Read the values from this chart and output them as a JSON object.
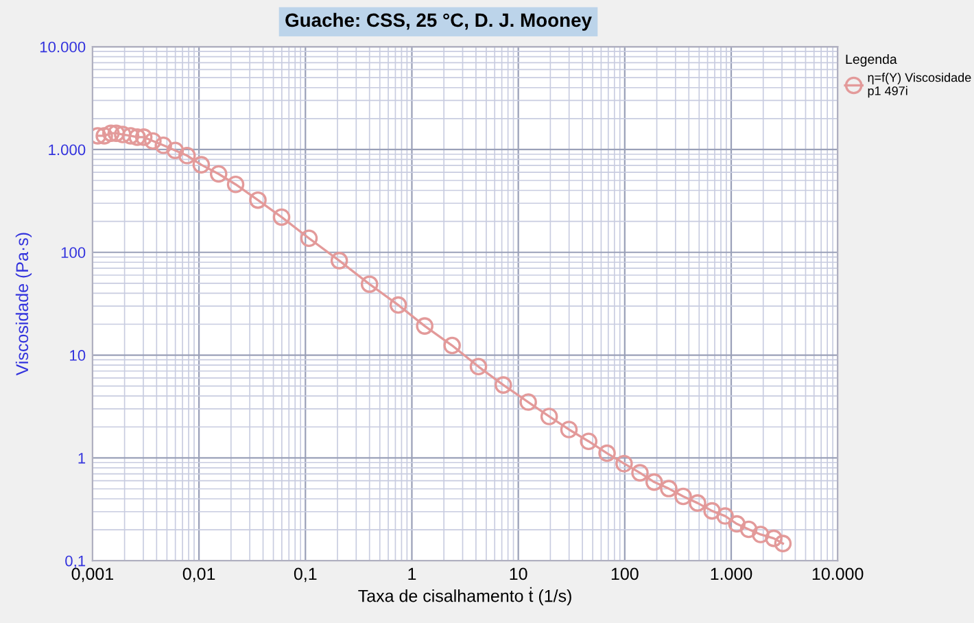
{
  "chart_data": {
    "type": "line",
    "title": "Guache: CSS, 25 °C, D. J. Mooney",
    "xlabel": "Taxa de cisalhamento ṫ (1/s)",
    "ylabel": "Viscosidade (Pa·s)",
    "legend_title": "Legenda",
    "log": "xy",
    "grid": true,
    "legend": "top right",
    "marker": "circle",
    "line_style": "solid",
    "xlim": [
      0.001,
      10000
    ],
    "ylim": [
      0.1,
      10000
    ],
    "xticks": [
      {
        "value": 0.001,
        "label": "0,001"
      },
      {
        "value": 0.01,
        "label": "0,01"
      },
      {
        "value": 0.1,
        "label": "0,1"
      },
      1,
      10,
      100,
      {
        "value": 1000,
        "label": "1.000"
      },
      {
        "value": 10000,
        "label": "10.000"
      }
    ],
    "yticks": [
      {
        "value": 0.1,
        "label": "0,1"
      },
      1,
      10,
      100,
      {
        "value": 1000,
        "label": "1.000"
      },
      {
        "value": 10000,
        "label": "10.000"
      }
    ],
    "series": [
      {
        "name": "η=f(Y) Viscosidade\np1 497i",
        "color": "#e39a9a",
        "x": [
          0.00112,
          0.00129,
          0.00149,
          0.00167,
          0.00192,
          0.00228,
          0.00263,
          0.00303,
          0.00369,
          0.00463,
          0.00598,
          0.00773,
          0.0105,
          0.0153,
          0.0221,
          0.0358,
          0.0597,
          0.108,
          0.208,
          0.4,
          0.746,
          1.32,
          2.39,
          4.22,
          7.23,
          12.4,
          19.5,
          29.9,
          45.8,
          68.2,
          98.6,
          139,
          189,
          259,
          354,
          483,
          661,
          877,
          1130,
          1460,
          1890,
          2510,
          3060
        ],
        "values": [
          1360,
          1360,
          1440,
          1440,
          1400,
          1360,
          1320,
          1320,
          1210,
          1100,
          980,
          873,
          711,
          579,
          458,
          322,
          220,
          137,
          83,
          49,
          30.7,
          19.2,
          12.4,
          7.73,
          5.12,
          3.49,
          2.53,
          1.89,
          1.45,
          1.11,
          0.88,
          0.716,
          0.582,
          0.503,
          0.422,
          0.364,
          0.305,
          0.272,
          0.228,
          0.202,
          0.18,
          0.165,
          0.147
        ]
      }
    ]
  }
}
